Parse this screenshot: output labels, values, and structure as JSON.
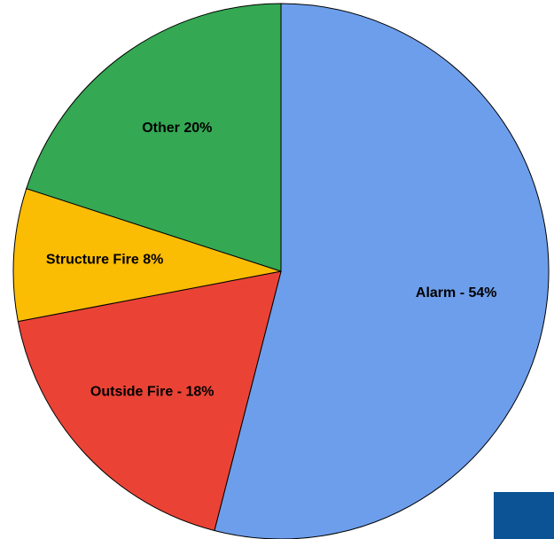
{
  "chart_data": {
    "type": "pie",
    "title": "",
    "slices": [
      {
        "label": "Alarm - 54%",
        "value": 54,
        "color": "#6d9eeb"
      },
      {
        "label": "Outside Fire - 18%",
        "value": 18,
        "color": "#ea4335"
      },
      {
        "label": "Structure Fire 8%",
        "value": 8,
        "color": "#fbbc04"
      },
      {
        "label": "Other 20%",
        "value": 20,
        "color": "#34a853"
      }
    ],
    "start_angle": "12 o'clock",
    "direction": "clockwise",
    "slice_border": "#000000"
  },
  "decor": {
    "corner_color": "#0b5394"
  }
}
